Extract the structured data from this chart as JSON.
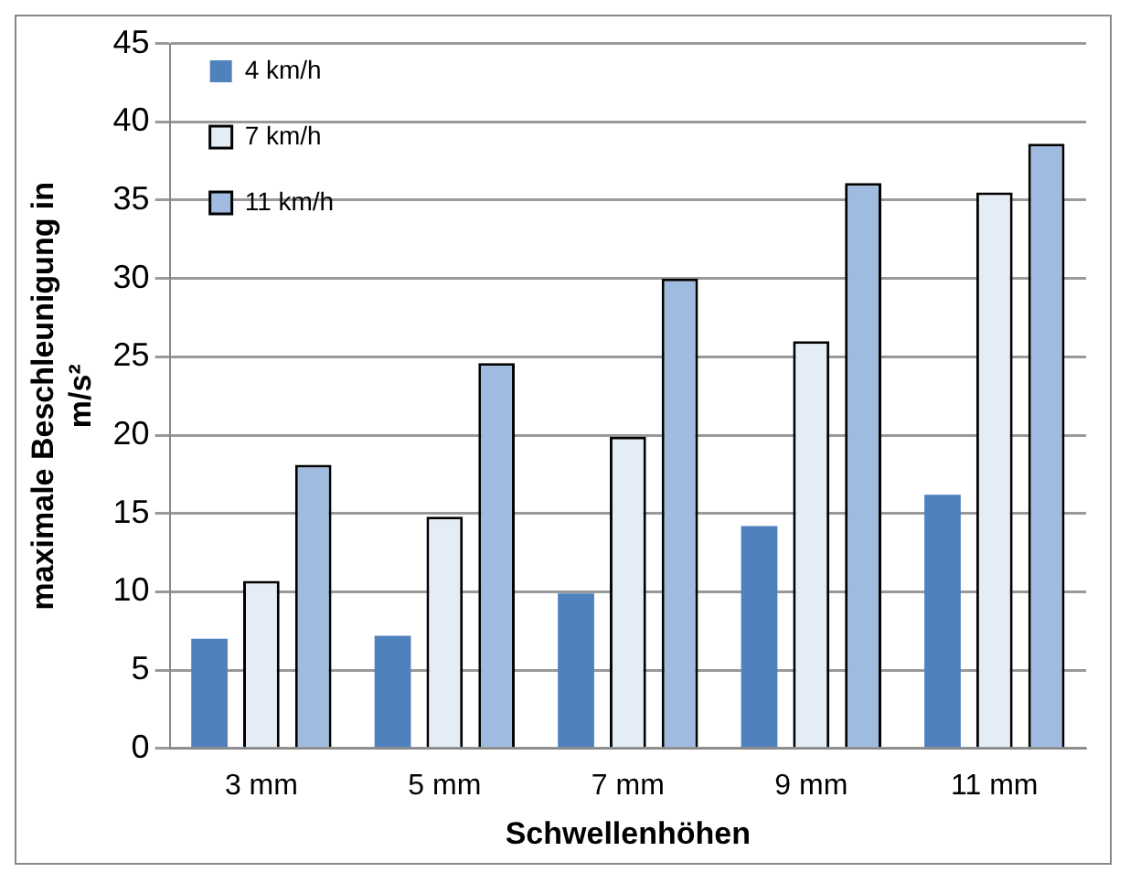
{
  "chart_data": {
    "type": "bar",
    "xlabel": "Schwellenhöhen",
    "ylabel": "maximale Beschleunigung in m/s²",
    "categories": [
      "3 mm",
      "5 mm",
      "7 mm",
      "9 mm",
      "11 mm"
    ],
    "series": [
      {
        "name": "4 km/h",
        "color": "#4f81bd",
        "values": [
          7.0,
          7.2,
          9.9,
          14.2,
          16.2
        ]
      },
      {
        "name": "7 km/h",
        "color": "#e4ecf6",
        "values": [
          10.7,
          14.8,
          19.9,
          26.0,
          35.5
        ]
      },
      {
        "name": "11 km/h",
        "color": "#9fbbe0",
        "values": [
          18.1,
          24.6,
          30.0,
          36.1,
          38.6
        ]
      }
    ],
    "ylim": [
      0,
      45
    ],
    "yticks": [
      0,
      5,
      10,
      15,
      20,
      25,
      30,
      35,
      40,
      45
    ],
    "grid": "y",
    "legend": "top left"
  }
}
